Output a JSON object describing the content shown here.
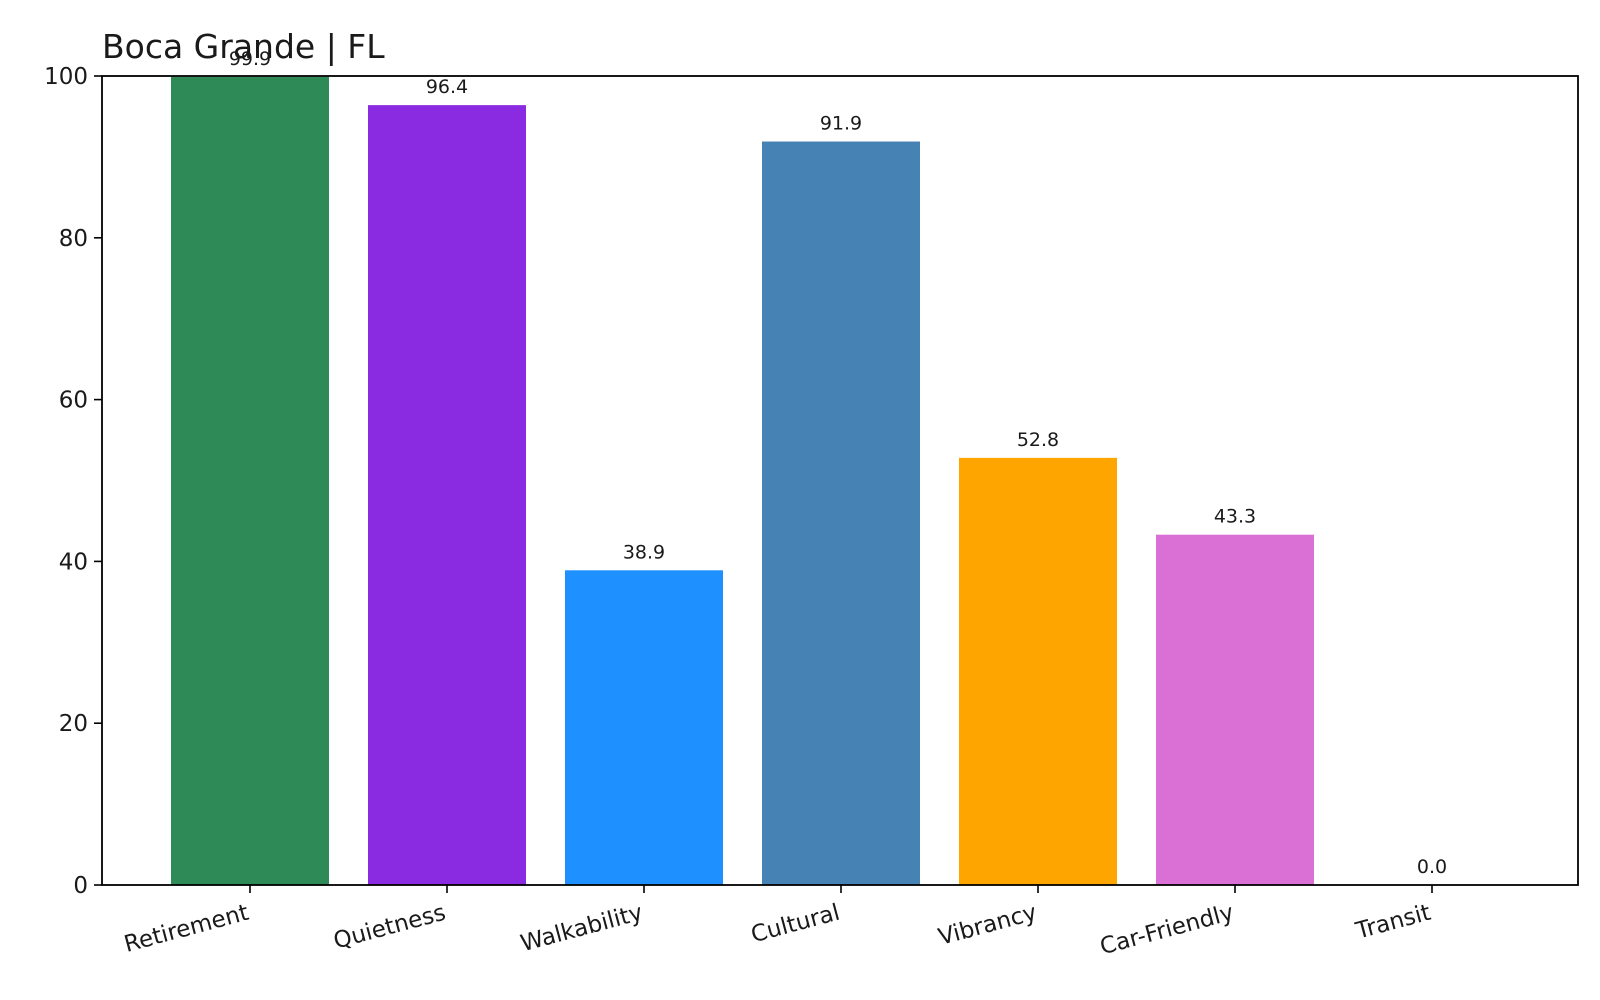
{
  "chart_data": {
    "type": "bar",
    "title": "Boca Grande | FL",
    "xlabel": "",
    "ylabel": "",
    "categories": [
      "Retirement",
      "Quietness",
      "Walkability",
      "Cultural",
      "Vibrancy",
      "Car-Friendly",
      "Transit"
    ],
    "values": [
      99.9,
      96.4,
      38.9,
      91.9,
      52.8,
      43.3,
      0.0
    ],
    "data_labels": [
      "99.9",
      "96.4",
      "38.9",
      "91.9",
      "52.8",
      "43.3",
      "0.0"
    ],
    "colors": [
      "#2e8b57",
      "#8a2be2",
      "#1e90ff",
      "#4682b4",
      "#ffa500",
      "#da70d6",
      "#808080"
    ],
    "ylim": [
      0,
      100
    ],
    "yticks": [
      0,
      20,
      40,
      60,
      80,
      100
    ],
    "grid": false,
    "legend": "none"
  }
}
